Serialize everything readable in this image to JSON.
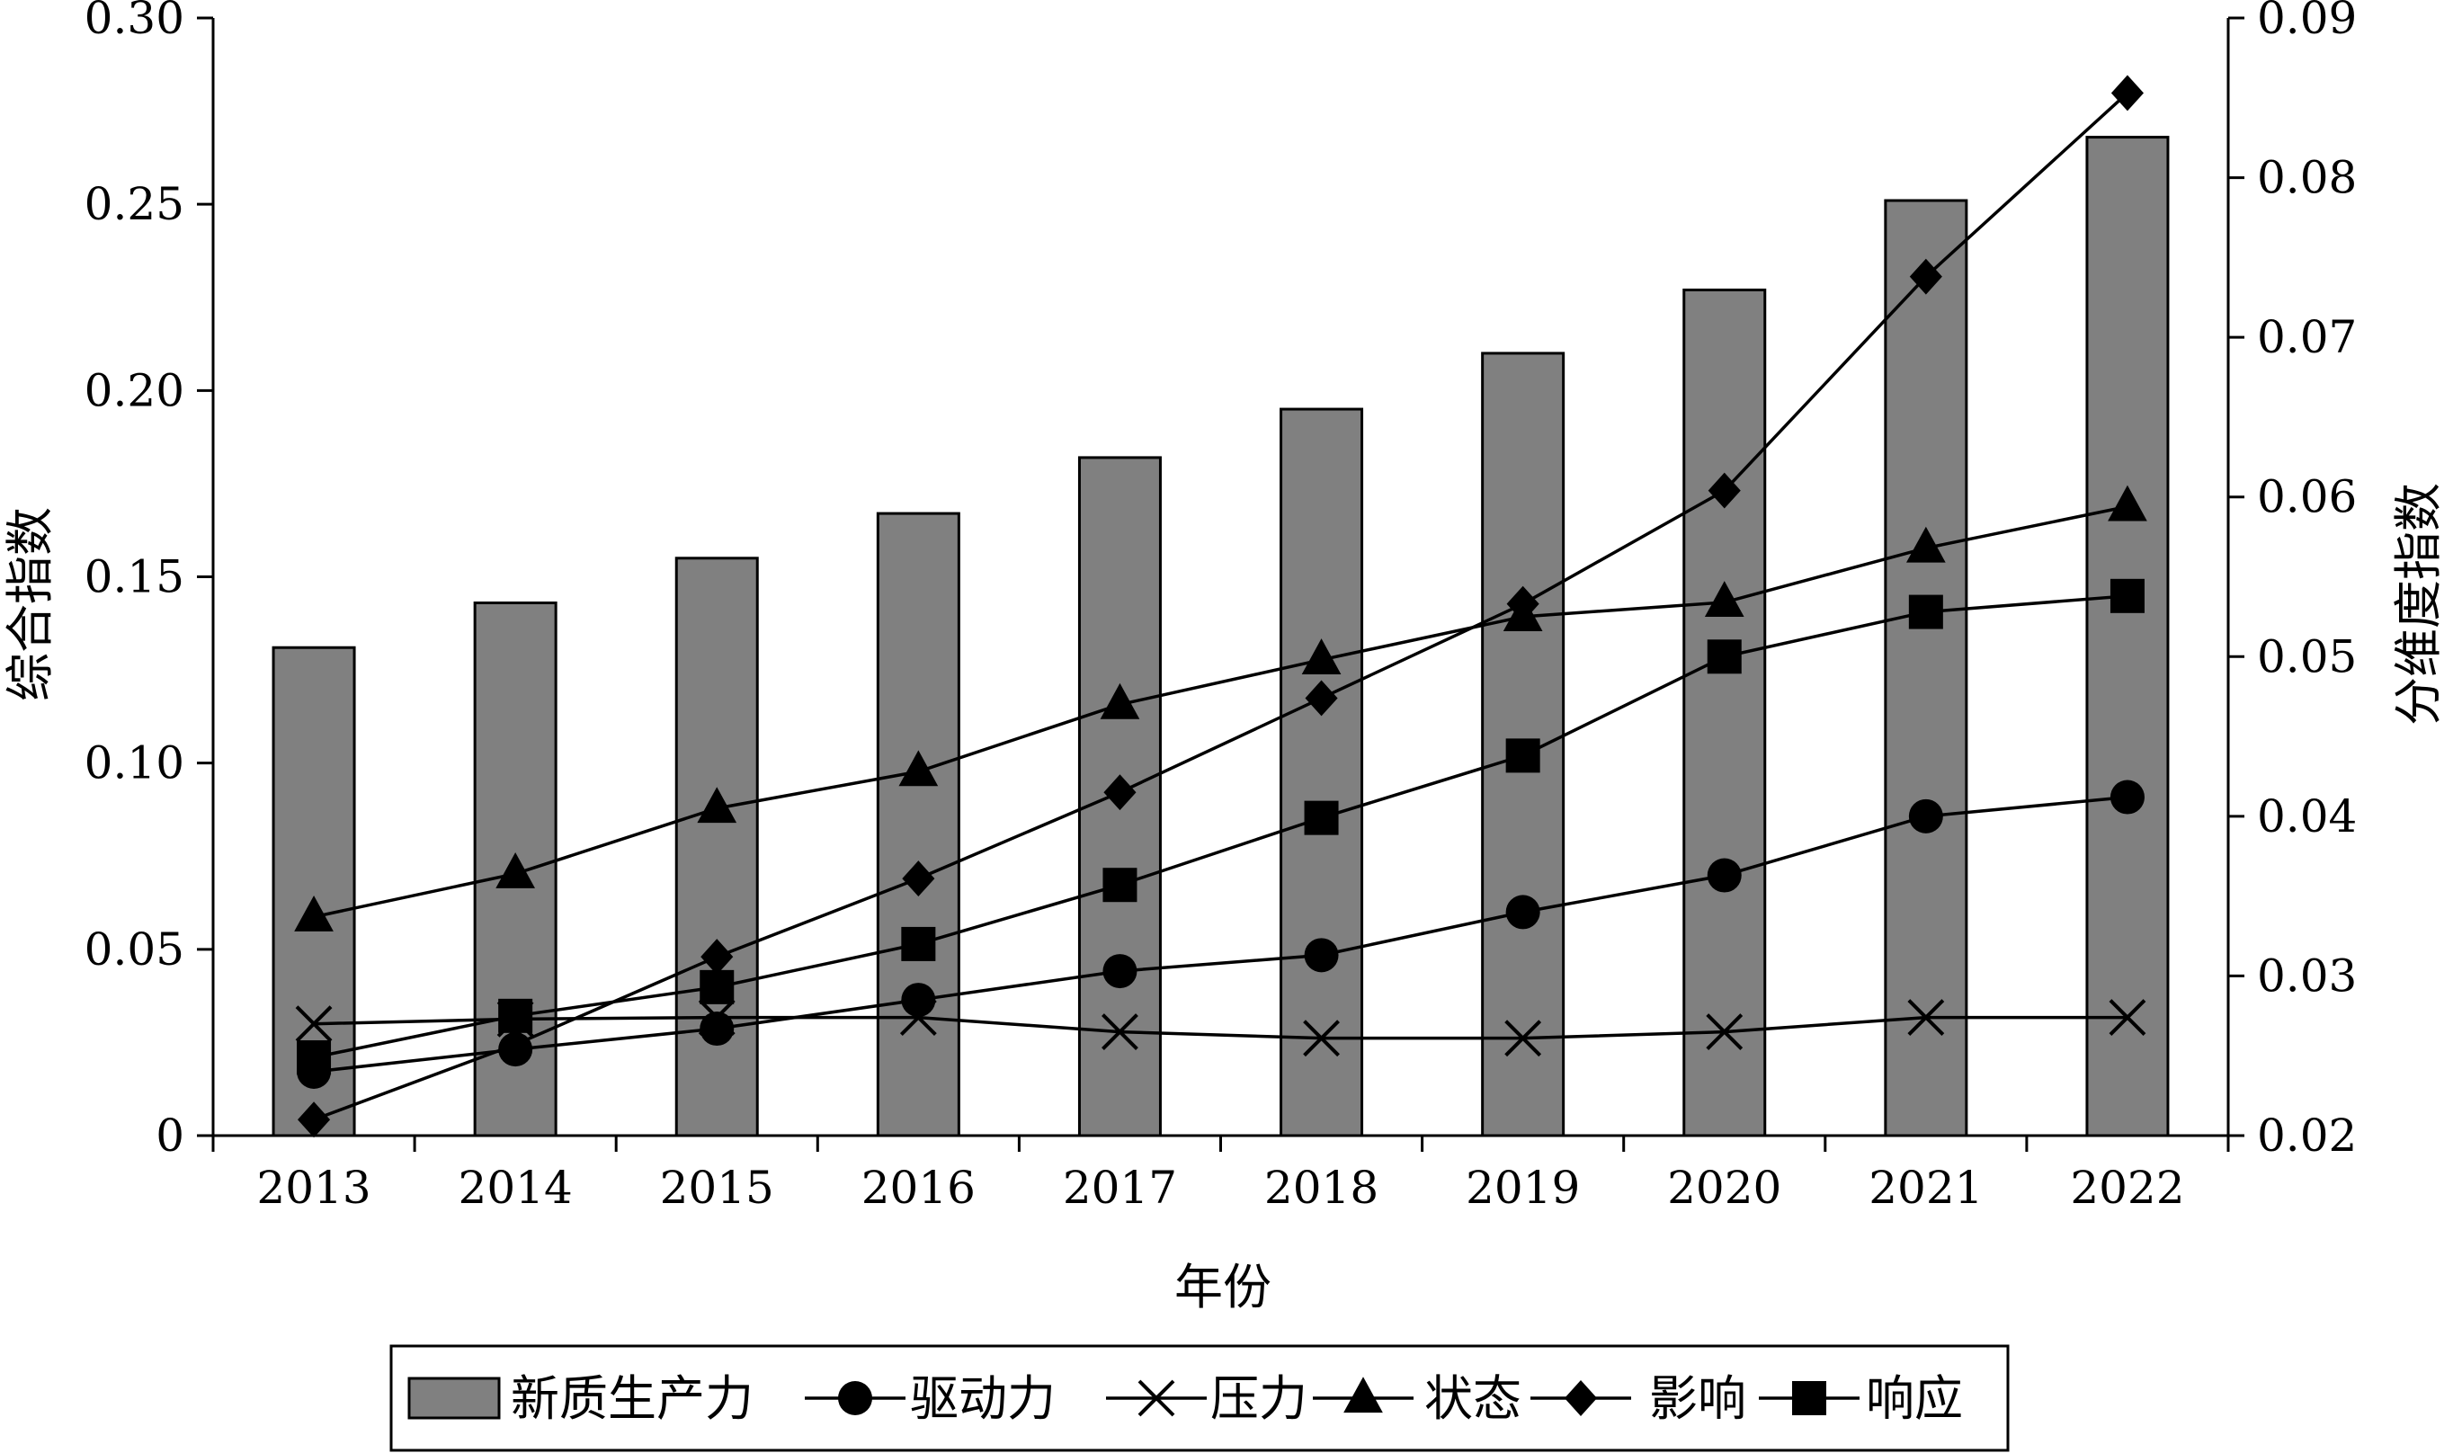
{
  "chart_data": {
    "type": "bar",
    "categories": [
      "2013",
      "2014",
      "2015",
      "2016",
      "2017",
      "2018",
      "2019",
      "2020",
      "2021",
      "2022"
    ],
    "xlabel": "年份",
    "ylabel_left": "综合指数",
    "ylabel_right": "分维度指数",
    "ylim_left": [
      0,
      0.3
    ],
    "ylim_right": [
      0.02,
      0.09
    ],
    "yticks_left": [
      "0",
      "0.05",
      "0.10",
      "0.15",
      "0.20",
      "0.25",
      "0.30"
    ],
    "yticks_right": [
      "0.02",
      "0.03",
      "0.04",
      "0.05",
      "0.06",
      "0.07",
      "0.08",
      "0.09"
    ],
    "legend_position": "bottom",
    "grid": false,
    "series": [
      {
        "name": "新质生产力",
        "type": "bar",
        "axis": "left",
        "color": "#808080",
        "values": [
          0.131,
          0.143,
          0.155,
          0.167,
          0.182,
          0.195,
          0.21,
          0.227,
          0.251,
          0.268
        ]
      },
      {
        "name": "驱动力",
        "type": "line",
        "axis": "right",
        "marker": "circle",
        "values": [
          0.024,
          0.0254,
          0.0267,
          0.0285,
          0.0303,
          0.0313,
          0.034,
          0.0363,
          0.04,
          0.0412
        ]
      },
      {
        "name": "压力",
        "type": "line",
        "axis": "right",
        "marker": "x",
        "values": [
          0.027,
          0.0273,
          0.0274,
          0.0274,
          0.0265,
          0.0261,
          0.0261,
          0.0265,
          0.0274,
          0.0274
        ]
      },
      {
        "name": "状态",
        "type": "line",
        "axis": "right",
        "marker": "triangle",
        "values": [
          0.0337,
          0.0364,
          0.0405,
          0.0428,
          0.047,
          0.0498,
          0.0525,
          0.0534,
          0.0568,
          0.0594
        ]
      },
      {
        "name": "影响",
        "type": "line",
        "axis": "right",
        "marker": "diamond",
        "values": [
          0.021,
          0.0257,
          0.0312,
          0.0361,
          0.0415,
          0.0474,
          0.0533,
          0.0604,
          0.0738,
          0.0853
        ]
      },
      {
        "name": "响应",
        "type": "line",
        "axis": "right",
        "marker": "square",
        "values": [
          0.0249,
          0.0275,
          0.0293,
          0.032,
          0.0357,
          0.0399,
          0.0438,
          0.05,
          0.0528,
          0.0538
        ]
      }
    ]
  }
}
